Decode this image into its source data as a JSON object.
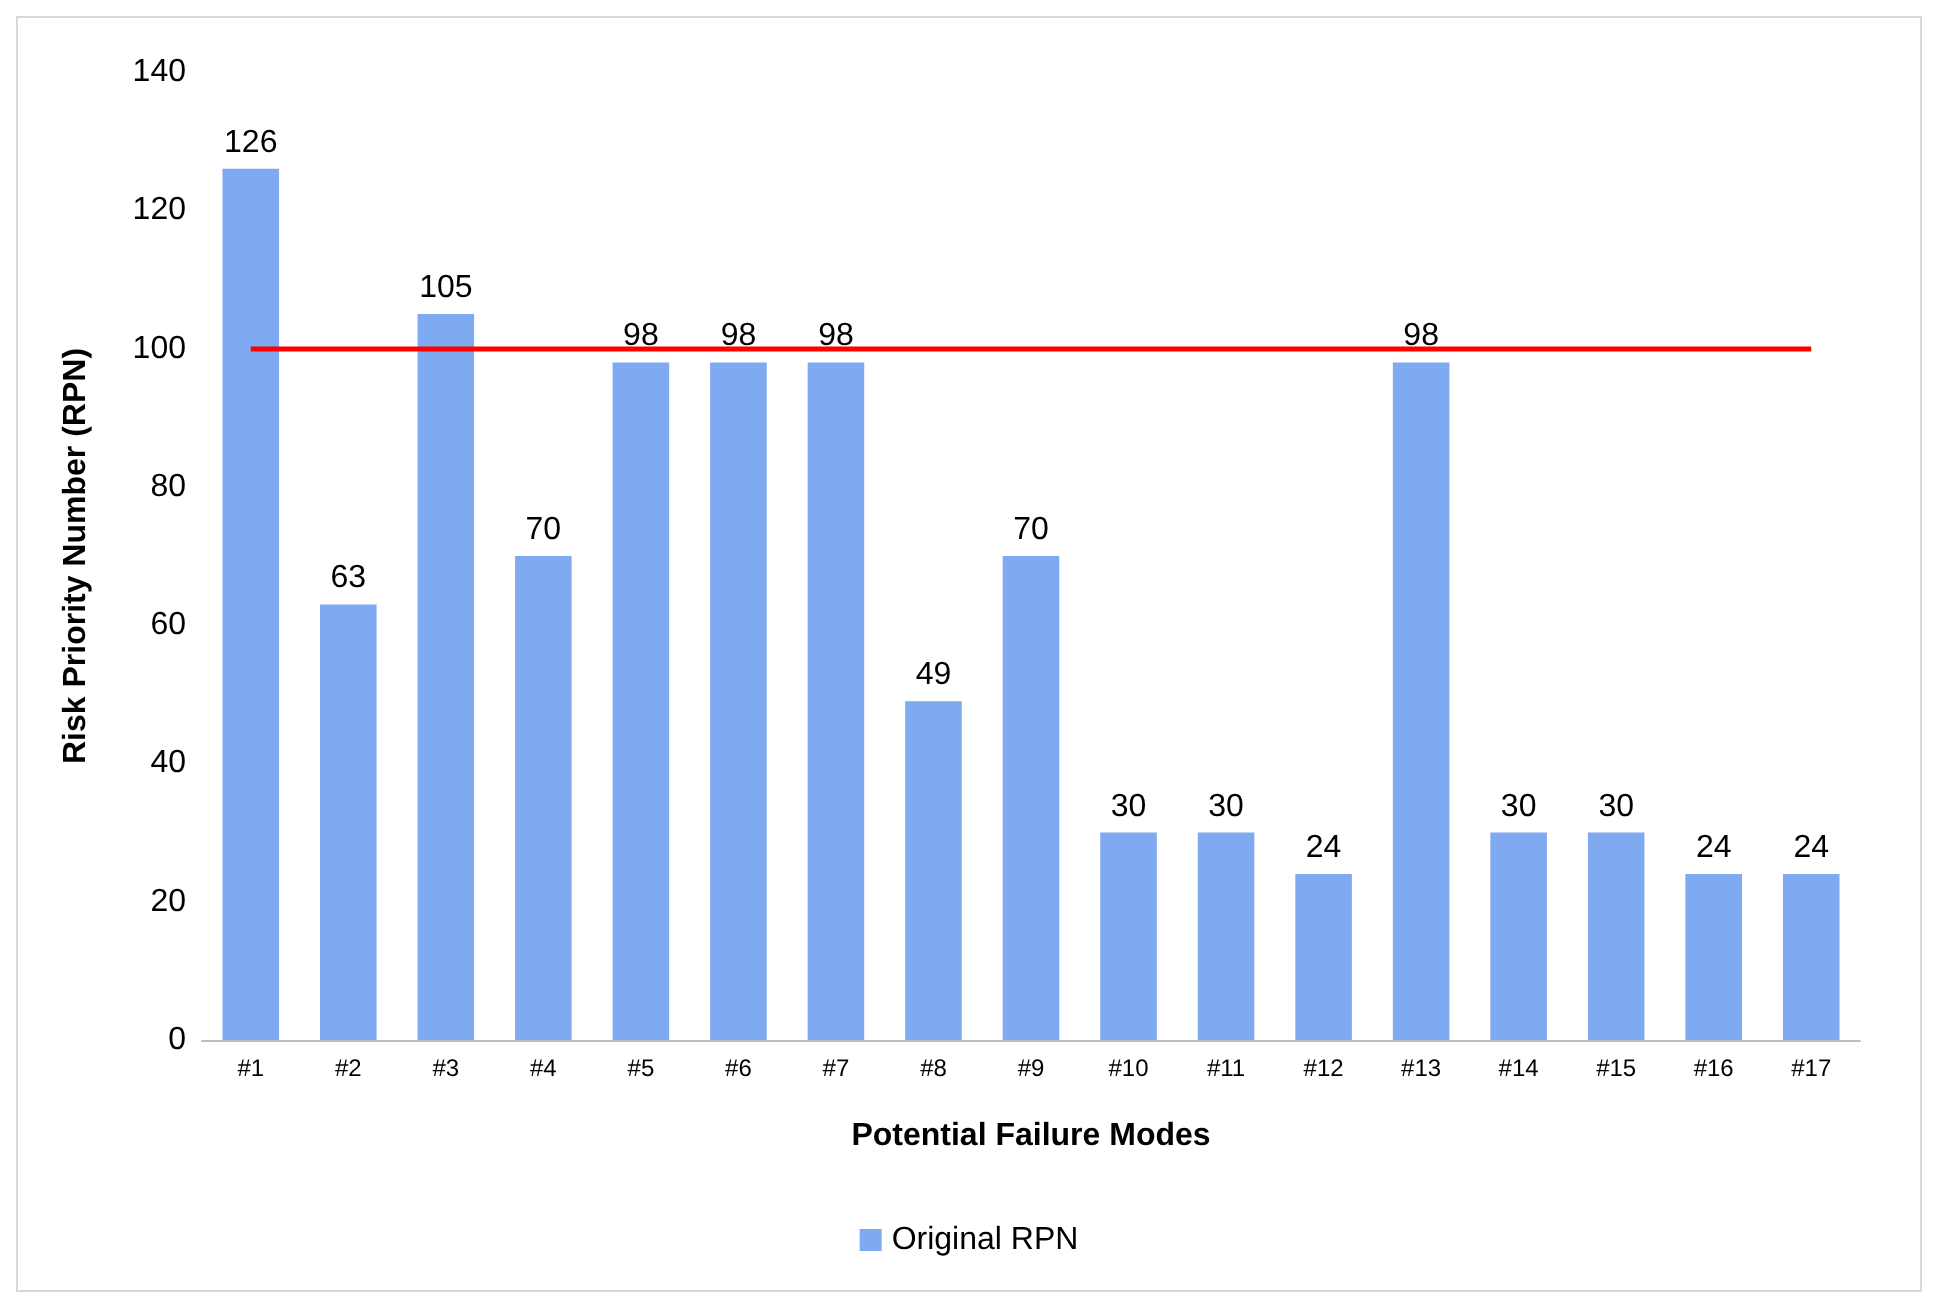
{
  "chart_data": {
    "type": "bar",
    "xlabel": "Potential Failure Modes",
    "ylabel": "Risk Priority Number (RPN)",
    "categories": [
      "#1",
      "#2",
      "#3",
      "#4",
      "#5",
      "#6",
      "#7",
      "#8",
      "#9",
      "#10",
      "#11",
      "#12",
      "#13",
      "#14",
      "#15",
      "#16",
      "#17"
    ],
    "series": [
      {
        "name": "Original RPN",
        "color": "#7fa9f0",
        "values": [
          126,
          63,
          105,
          70,
          98,
          98,
          98,
          49,
          70,
          30,
          30,
          24,
          98,
          30,
          30,
          24,
          24
        ]
      }
    ],
    "ylim": [
      0,
      140
    ],
    "yticks": [
      0,
      20,
      40,
      60,
      80,
      100,
      120,
      140
    ],
    "ref_lines": [
      {
        "axis": "y",
        "value": 100,
        "color": "#ff0000"
      }
    ],
    "data_labels": true,
    "legend": "bottom",
    "grid": false
  }
}
